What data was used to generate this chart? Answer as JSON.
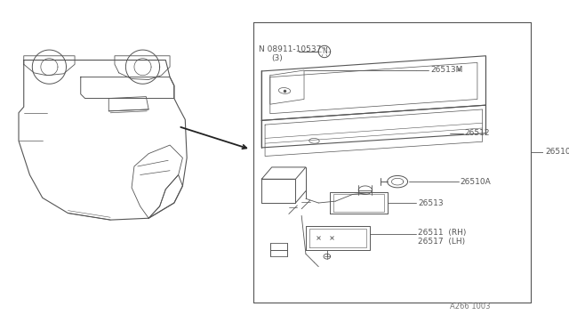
{
  "background_color": "#ffffff",
  "border_color": "#555555",
  "line_color": "#555555",
  "text_color": "#555555",
  "bottom_label": "A266 1003",
  "parts": {
    "08911": "N 08911-10537",
    "08911_sub": "(3)",
    "26510": "26510",
    "26510A": "26510A",
    "26512": "26512",
    "26513": "26513",
    "26513M": "26513M",
    "26511": "26511  (RH)",
    "26517": "26517  (LH)"
  }
}
